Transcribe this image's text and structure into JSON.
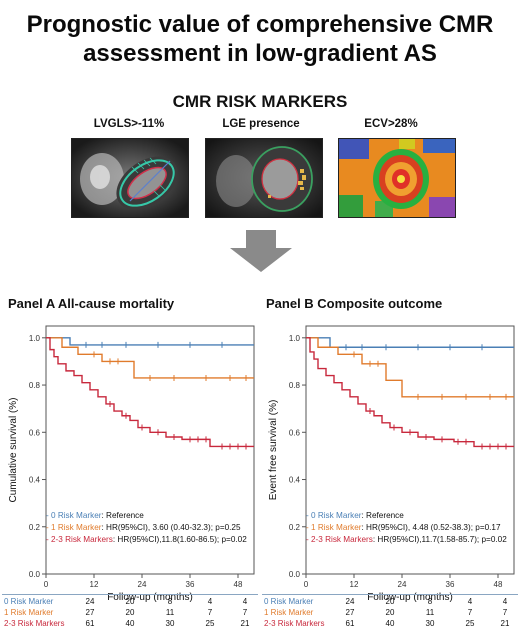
{
  "title_line1": "Prognostic value of comprehensive CMR",
  "title_line2": "assessment in low-gradient AS",
  "markers_heading": "CMR RISK MARKERS",
  "markers": [
    {
      "label": "LVGLS>-11%"
    },
    {
      "label": "LGE presence"
    },
    {
      "label": "ECV>28%"
    }
  ],
  "colors": {
    "zero": "#4a7fb5",
    "one": "#e07b2c",
    "two3": "#c8283c",
    "axis": "#555555"
  },
  "panels": [
    {
      "title": "Panel A  All-cause mortality",
      "ylabel": "Cumulative survival (%)",
      "legend": [
        {
          "name": "- 0 Risk Marker",
          "text": ": Reference"
        },
        {
          "name": "- 1 Risk Marker",
          "text": ": HR(95%CI), 3.60 (0.40-32.3); p=0.25"
        },
        {
          "name": "- 2-3 Risk Markers",
          "text": ": HR(95%CI),11.8(1.60-86.5); p=0.02"
        }
      ]
    },
    {
      "title": "Panel B  Composite outcome",
      "ylabel": "Event free survival (%)",
      "legend": [
        {
          "name": "- 0 Risk Marker",
          "text": ": Reference"
        },
        {
          "name": "- 1 Risk Marker",
          "text": ": HR(95%CI), 4.48 (0.52-38.3); p=0.17"
        },
        {
          "name": "- 2-3 Risk Markers",
          "text": ": HR(95%CI),11.7(1.58-85.7); p=0.02"
        }
      ]
    }
  ],
  "chart_data": [
    {
      "type": "line",
      "title": "Panel A  All-cause mortality",
      "xlabel": "Follow-up (months)",
      "ylabel": "Cumulative survival (%)",
      "xlim": [
        0,
        52
      ],
      "ylim": [
        0,
        1.05
      ],
      "xticks": [
        0,
        12,
        24,
        36,
        48
      ],
      "yticks": [
        "0.0",
        "0.2",
        "0.4",
        "0.6",
        "0.8",
        "1.0"
      ],
      "series": [
        {
          "name": "0 Risk Marker",
          "steps": [
            [
              0,
              1.0
            ],
            [
              6,
              0.97
            ],
            [
              52,
              0.97
            ]
          ],
          "censors": [
            10,
            14,
            20,
            28,
            36,
            44
          ]
        },
        {
          "name": "1 Risk Marker",
          "steps": [
            [
              0,
              1.0
            ],
            [
              4,
              0.96
            ],
            [
              8,
              0.93
            ],
            [
              14,
              0.9
            ],
            [
              22,
              0.83
            ],
            [
              52,
              0.83
            ]
          ],
          "censors": [
            12,
            16,
            18,
            26,
            32,
            40,
            46,
            50
          ]
        },
        {
          "name": "2-3 Risk Markers",
          "steps": [
            [
              0,
              1.0
            ],
            [
              1,
              0.95
            ],
            [
              2,
              0.92
            ],
            [
              3,
              0.89
            ],
            [
              5,
              0.86
            ],
            [
              7,
              0.84
            ],
            [
              9,
              0.81
            ],
            [
              11,
              0.78
            ],
            [
              13,
              0.75
            ],
            [
              15,
              0.72
            ],
            [
              17,
              0.69
            ],
            [
              19,
              0.67
            ],
            [
              21,
              0.65
            ],
            [
              23,
              0.62
            ],
            [
              26,
              0.6
            ],
            [
              30,
              0.58
            ],
            [
              34,
              0.57
            ],
            [
              41,
              0.54
            ],
            [
              52,
              0.54
            ]
          ],
          "censors": [
            16,
            20,
            24,
            28,
            32,
            36,
            38,
            40,
            44,
            46,
            48,
            50
          ]
        }
      ],
      "risk_table": {
        "times": [
          0,
          12,
          24,
          36,
          48
        ],
        "rows": [
          {
            "name": "0 Risk Marker",
            "values": [
              "24",
              "20",
              "8",
              "4",
              "4"
            ]
          },
          {
            "name": "1 Risk Marker",
            "values": [
              "27",
              "20",
              "11",
              "7",
              "7"
            ]
          },
          {
            "name": "2-3 Risk Markers",
            "values": [
              "61",
              "40",
              "30",
              "25",
              "21"
            ]
          }
        ]
      }
    },
    {
      "type": "line",
      "title": "Panel B  Composite outcome",
      "xlabel": "Follow-up (months)",
      "ylabel": "Event free survival (%)",
      "xlim": [
        0,
        52
      ],
      "ylim": [
        0,
        1.05
      ],
      "xticks": [
        0,
        12,
        24,
        36,
        48
      ],
      "yticks": [
        "0.0",
        "0.2",
        "0.4",
        "0.6",
        "0.8",
        "1.0"
      ],
      "series": [
        {
          "name": "0 Risk Marker",
          "steps": [
            [
              0,
              1.0
            ],
            [
              6,
              0.96
            ],
            [
              52,
              0.96
            ]
          ],
          "censors": [
            10,
            14,
            20,
            28,
            36,
            44
          ]
        },
        {
          "name": "1 Risk Marker",
          "steps": [
            [
              0,
              1.0
            ],
            [
              3,
              0.96
            ],
            [
              8,
              0.93
            ],
            [
              14,
              0.89
            ],
            [
              20,
              0.82
            ],
            [
              24,
              0.75
            ],
            [
              52,
              0.75
            ]
          ],
          "censors": [
            12,
            16,
            18,
            28,
            34,
            40,
            46,
            50
          ]
        },
        {
          "name": "2-3 Risk Markers",
          "steps": [
            [
              0,
              1.0
            ],
            [
              1,
              0.94
            ],
            [
              2,
              0.91
            ],
            [
              3,
              0.87
            ],
            [
              5,
              0.84
            ],
            [
              7,
              0.81
            ],
            [
              9,
              0.78
            ],
            [
              11,
              0.75
            ],
            [
              13,
              0.72
            ],
            [
              15,
              0.69
            ],
            [
              17,
              0.67
            ],
            [
              19,
              0.64
            ],
            [
              21,
              0.62
            ],
            [
              24,
              0.6
            ],
            [
              28,
              0.58
            ],
            [
              32,
              0.57
            ],
            [
              37,
              0.56
            ],
            [
              42,
              0.54
            ],
            [
              52,
              0.54
            ]
          ],
          "censors": [
            16,
            22,
            26,
            30,
            34,
            38,
            40,
            44,
            46,
            48,
            50
          ]
        }
      ],
      "risk_table": {
        "times": [
          0,
          12,
          24,
          36,
          48
        ],
        "rows": [
          {
            "name": "0 Risk Marker",
            "values": [
              "24",
              "20",
              "8",
              "4",
              "4"
            ]
          },
          {
            "name": "1 Risk Marker",
            "values": [
              "27",
              "20",
              "11",
              "7",
              "7"
            ]
          },
          {
            "name": "2-3 Risk Markers",
            "values": [
              "61",
              "40",
              "30",
              "25",
              "21"
            ]
          }
        ]
      }
    }
  ]
}
